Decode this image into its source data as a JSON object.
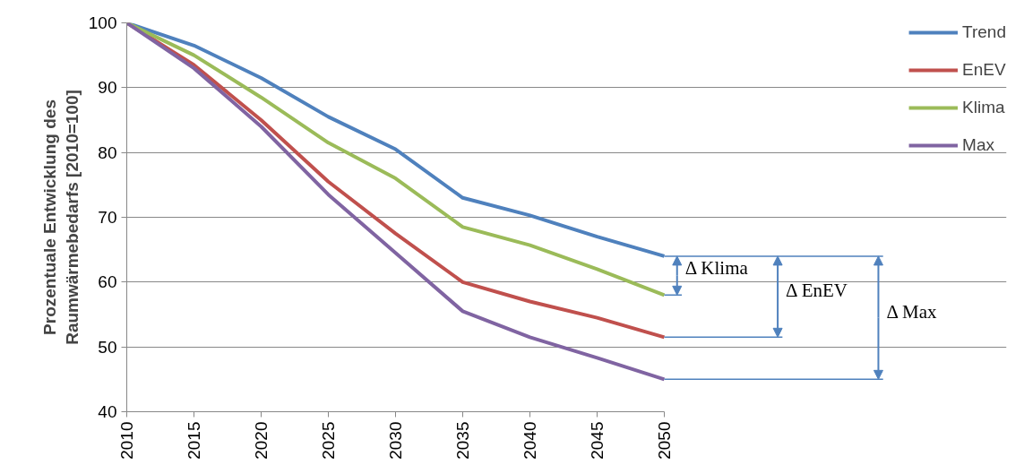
{
  "chart_data": {
    "type": "line",
    "ylabel": "Prozentuale Entwicklung des\nRaumwärmebedarfs [2010=100]",
    "x": [
      2010,
      2015,
      2020,
      2025,
      2030,
      2035,
      2040,
      2045,
      2050
    ],
    "series": [
      {
        "name": "Trend",
        "color": "#4f81bd",
        "values": [
          100,
          96.5,
          91.5,
          85.5,
          80.5,
          73,
          70.3,
          67,
          64
        ]
      },
      {
        "name": "EnEV",
        "color": "#c0504d",
        "values": [
          100,
          93.5,
          85,
          75.5,
          67.5,
          60,
          57,
          54.5,
          51.5
        ]
      },
      {
        "name": "Klima",
        "color": "#9bbb59",
        "values": [
          100,
          95,
          88.5,
          81.5,
          76,
          68.5,
          65.7,
          62,
          58
        ]
      },
      {
        "name": "Max",
        "color": "#8064a2",
        "values": [
          100,
          93,
          84,
          73.5,
          64.5,
          55.5,
          51.5,
          48.3,
          45
        ]
      }
    ],
    "xlim": [
      2010,
      2050
    ],
    "xticks": [
      2010,
      2015,
      2020,
      2025,
      2030,
      2035,
      2040,
      2045,
      2050
    ],
    "ylim": [
      40,
      100
    ],
    "yticks": [
      40,
      50,
      60,
      70,
      80,
      90,
      100
    ],
    "annotations": [
      "Δ Klima",
      "Δ EnEV",
      "Δ Max"
    ],
    "grid": "y",
    "legend": "top right",
    "marker": "none",
    "line_style": "solid"
  }
}
